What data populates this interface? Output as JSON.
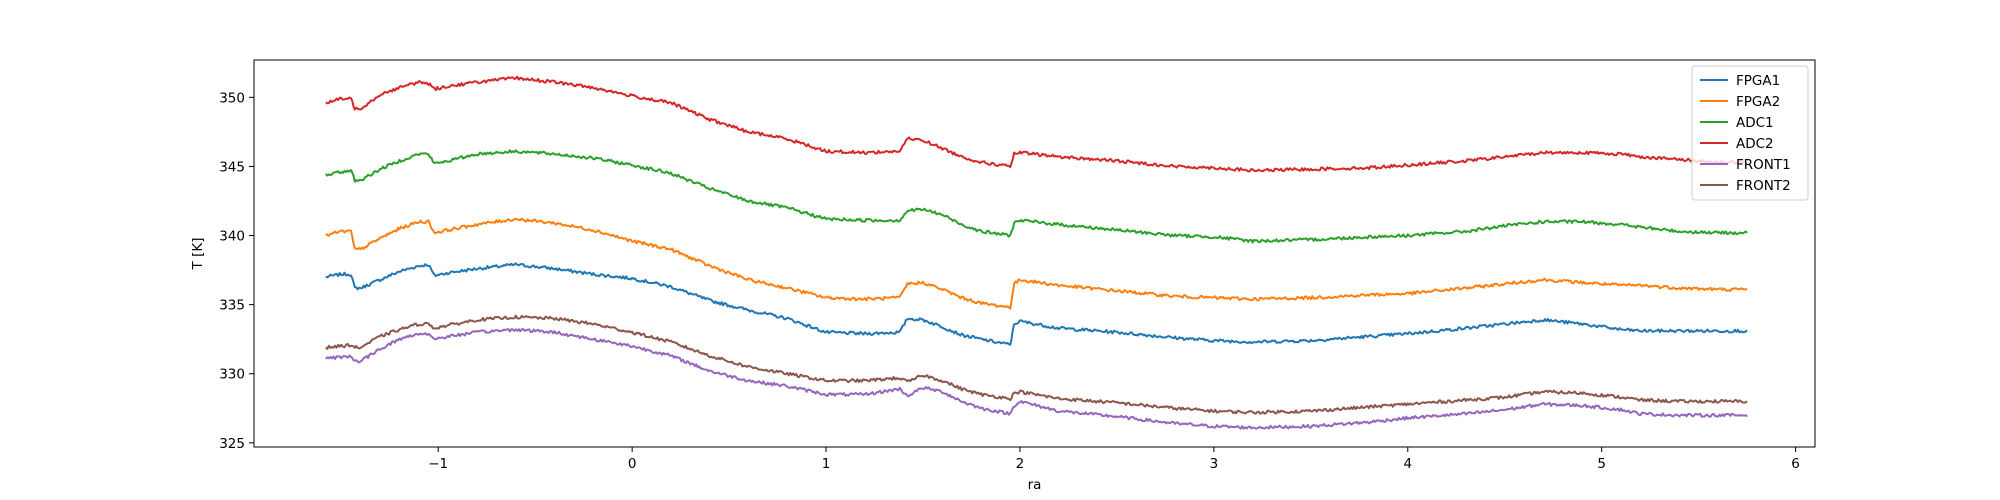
{
  "chart_data": {
    "type": "line",
    "xlabel": "ra",
    "ylabel": "T [K]",
    "xlim": [
      -1.95,
      6.1
    ],
    "ylim": [
      324.7,
      352.7
    ],
    "xticks": [
      -1,
      0,
      1,
      2,
      3,
      4,
      5,
      6
    ],
    "yticks": [
      325,
      330,
      335,
      340,
      345,
      350
    ],
    "xtick_labels": [
      "−1",
      "0",
      "1",
      "2",
      "3",
      "4",
      "5",
      "6"
    ],
    "ytick_labels": [
      "325",
      "330",
      "335",
      "340",
      "345",
      "350"
    ],
    "grid": false,
    "legend_position": "top-right",
    "series": [
      {
        "name": "FPGA1",
        "color": "#1f77b4",
        "x": [
          -1.58,
          -1.5,
          -1.45,
          -1.43,
          -1.4,
          -1.3,
          -1.2,
          -1.1,
          -1.05,
          -1.02,
          -0.95,
          -0.8,
          -0.6,
          -0.4,
          -0.2,
          0,
          0.2,
          0.4,
          0.6,
          0.8,
          1.0,
          1.2,
          1.38,
          1.42,
          1.5,
          1.6,
          1.7,
          1.8,
          1.95,
          1.97,
          2.0,
          2.2,
          2.5,
          2.8,
          3.0,
          3.2,
          3.5,
          3.8,
          4.0,
          4.3,
          4.5,
          4.7,
          4.9,
          5.1,
          5.2,
          5.4,
          5.6,
          5.75
        ],
        "y": [
          337.0,
          337.2,
          337.2,
          336.2,
          336.2,
          336.8,
          337.4,
          337.8,
          337.9,
          337.1,
          337.3,
          337.6,
          337.9,
          337.6,
          337.2,
          336.9,
          336.3,
          335.3,
          334.6,
          334.0,
          333.0,
          332.9,
          333.0,
          334.0,
          333.9,
          333.4,
          332.8,
          332.5,
          332.1,
          333.6,
          333.8,
          333.3,
          333.0,
          332.6,
          332.4,
          332.3,
          332.4,
          332.7,
          332.9,
          333.3,
          333.6,
          333.9,
          333.6,
          333.2,
          333.1,
          333.1,
          333.1,
          333.1
        ]
      },
      {
        "name": "FPGA2",
        "color": "#ff7f0e",
        "x": [
          -1.58,
          -1.5,
          -1.45,
          -1.43,
          -1.4,
          -1.3,
          -1.2,
          -1.1,
          -1.05,
          -1.02,
          -0.95,
          -0.8,
          -0.6,
          -0.4,
          -0.2,
          0,
          0.2,
          0.4,
          0.6,
          0.8,
          1.0,
          1.2,
          1.38,
          1.42,
          1.5,
          1.6,
          1.7,
          1.8,
          1.95,
          1.97,
          2.0,
          2.2,
          2.5,
          2.8,
          3.0,
          3.2,
          3.5,
          3.8,
          4.0,
          4.3,
          4.5,
          4.7,
          4.9,
          5.1,
          5.2,
          5.4,
          5.6,
          5.75
        ],
        "y": [
          340.0,
          340.3,
          340.3,
          339.0,
          339.0,
          339.8,
          340.5,
          341.0,
          341.0,
          340.2,
          340.4,
          340.8,
          341.2,
          340.9,
          340.4,
          339.6,
          339.0,
          337.8,
          336.8,
          336.2,
          335.5,
          335.4,
          335.5,
          336.5,
          336.6,
          336.1,
          335.5,
          335.1,
          334.8,
          336.5,
          336.8,
          336.4,
          336.0,
          335.6,
          335.5,
          335.4,
          335.5,
          335.7,
          335.8,
          336.2,
          336.5,
          336.8,
          336.6,
          336.4,
          336.4,
          336.2,
          336.1,
          336.1
        ]
      },
      {
        "name": "ADC1",
        "color": "#2ca02c",
        "x": [
          -1.58,
          -1.5,
          -1.45,
          -1.43,
          -1.4,
          -1.3,
          -1.2,
          -1.1,
          -1.05,
          -1.02,
          -0.95,
          -0.8,
          -0.6,
          -0.4,
          -0.2,
          0,
          0.2,
          0.4,
          0.6,
          0.8,
          1.0,
          1.2,
          1.38,
          1.42,
          1.5,
          1.6,
          1.7,
          1.8,
          1.95,
          1.97,
          2.0,
          2.2,
          2.5,
          2.8,
          3.0,
          3.2,
          3.5,
          3.8,
          4.0,
          4.3,
          4.5,
          4.7,
          4.9,
          5.1,
          5.2,
          5.4,
          5.6,
          5.75
        ],
        "y": [
          344.4,
          344.6,
          344.7,
          344.0,
          344.0,
          344.8,
          345.4,
          345.9,
          345.9,
          345.2,
          345.4,
          345.9,
          346.1,
          345.9,
          345.6,
          345.1,
          344.5,
          343.4,
          342.5,
          342.0,
          341.2,
          341.1,
          341.1,
          341.8,
          341.9,
          341.5,
          340.8,
          340.3,
          340.0,
          340.9,
          341.1,
          340.8,
          340.4,
          340.0,
          339.9,
          339.6,
          339.7,
          339.9,
          340.0,
          340.3,
          340.7,
          341.0,
          341.0,
          340.8,
          340.6,
          340.3,
          340.2,
          340.2
        ]
      },
      {
        "name": "ADC2",
        "color": "#d62728",
        "x": [
          -1.58,
          -1.5,
          -1.45,
          -1.43,
          -1.4,
          -1.3,
          -1.2,
          -1.1,
          -1.05,
          -1.02,
          -0.95,
          -0.8,
          -0.6,
          -0.4,
          -0.2,
          0,
          0.2,
          0.4,
          0.6,
          0.8,
          1.0,
          1.2,
          1.38,
          1.42,
          1.5,
          1.6,
          1.7,
          1.8,
          1.95,
          1.97,
          2.0,
          2.2,
          2.5,
          2.8,
          3.0,
          3.2,
          3.5,
          3.8,
          4.0,
          4.3,
          4.5,
          4.7,
          4.9,
          5.1,
          5.2,
          5.4,
          5.6,
          5.75
        ],
        "y": [
          349.6,
          349.9,
          349.9,
          349.2,
          349.2,
          350.2,
          350.7,
          351.1,
          351.0,
          350.6,
          350.8,
          351.1,
          351.4,
          351.1,
          350.7,
          350.1,
          349.6,
          348.4,
          347.5,
          347.0,
          346.1,
          346.0,
          346.1,
          347.0,
          346.9,
          346.3,
          345.7,
          345.3,
          345.0,
          345.9,
          346.0,
          345.7,
          345.4,
          345.0,
          344.9,
          344.7,
          344.8,
          344.9,
          345.1,
          345.4,
          345.7,
          346.0,
          346.0,
          345.9,
          345.7,
          345.5,
          345.3,
          345.3
        ]
      },
      {
        "name": "FRONT1",
        "color": "#9467bd",
        "x": [
          -1.58,
          -1.5,
          -1.45,
          -1.43,
          -1.4,
          -1.3,
          -1.2,
          -1.1,
          -1.05,
          -1.02,
          -0.95,
          -0.8,
          -0.6,
          -0.4,
          -0.2,
          0,
          0.2,
          0.4,
          0.6,
          0.8,
          1.0,
          1.2,
          1.38,
          1.42,
          1.5,
          1.6,
          1.7,
          1.8,
          1.95,
          1.97,
          2.0,
          2.2,
          2.5,
          2.8,
          3.0,
          3.2,
          3.5,
          3.8,
          4.0,
          4.3,
          4.5,
          4.7,
          4.9,
          5.1,
          5.2,
          5.4,
          5.6,
          5.75
        ],
        "y": [
          331.1,
          331.2,
          331.3,
          330.9,
          330.9,
          331.8,
          332.5,
          332.9,
          332.9,
          332.5,
          332.7,
          333.0,
          333.2,
          333.0,
          332.5,
          332.0,
          331.3,
          330.2,
          329.5,
          329.1,
          328.5,
          328.5,
          328.9,
          328.4,
          329.0,
          328.7,
          328.0,
          327.5,
          327.1,
          327.7,
          328.0,
          327.3,
          326.9,
          326.4,
          326.2,
          326.1,
          326.2,
          326.5,
          326.8,
          327.1,
          327.4,
          327.8,
          327.7,
          327.4,
          327.1,
          327.0,
          327.0,
          327.0
        ]
      },
      {
        "name": "FRONT2",
        "color": "#8c564b",
        "x": [
          -1.58,
          -1.5,
          -1.45,
          -1.43,
          -1.4,
          -1.3,
          -1.2,
          -1.1,
          -1.05,
          -1.02,
          -0.95,
          -0.8,
          -0.6,
          -0.4,
          -0.2,
          0,
          0.2,
          0.4,
          0.6,
          0.8,
          1.0,
          1.2,
          1.38,
          1.42,
          1.5,
          1.6,
          1.7,
          1.8,
          1.95,
          1.97,
          2.0,
          2.2,
          2.5,
          2.8,
          3.0,
          3.2,
          3.5,
          3.8,
          4.0,
          4.3,
          4.5,
          4.7,
          4.9,
          5.1,
          5.2,
          5.4,
          5.6,
          5.75
        ],
        "y": [
          331.9,
          332.0,
          332.1,
          331.9,
          331.9,
          332.7,
          333.2,
          333.6,
          333.6,
          333.3,
          333.5,
          333.9,
          334.1,
          334.0,
          333.6,
          333.0,
          332.3,
          331.3,
          330.5,
          330.0,
          329.5,
          329.5,
          329.7,
          329.4,
          329.9,
          329.5,
          328.9,
          328.5,
          328.2,
          328.6,
          328.7,
          328.2,
          327.9,
          327.5,
          327.3,
          327.2,
          327.3,
          327.6,
          327.8,
          328.1,
          328.3,
          328.7,
          328.6,
          328.3,
          328.1,
          328.0,
          328.0,
          328.0
        ]
      }
    ]
  }
}
